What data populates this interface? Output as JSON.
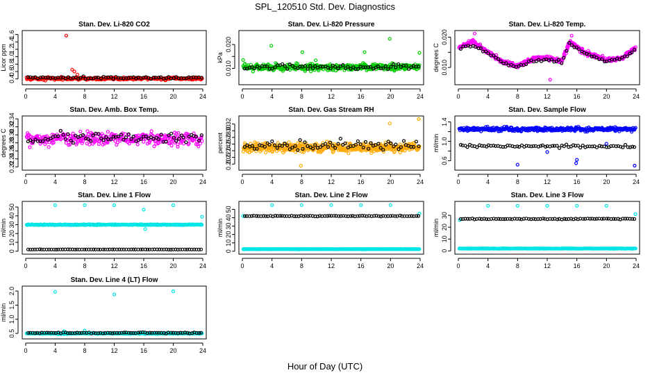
{
  "figure": {
    "title": "SPL_120510  Std. Dev. Diagnostics",
    "xlabel": "Hour of Day (UTC)"
  },
  "chart_data": [
    {
      "type": "scatter",
      "title": "Stan. Dev. Li-820 CO2",
      "ylabel": "Licor ppm",
      "xlim": [
        0,
        24
      ],
      "ylim": [
        0.3,
        1.65
      ],
      "xticks": [
        0,
        4,
        8,
        12,
        16,
        20,
        24
      ],
      "yticks": [
        0.4,
        0.6,
        0.8,
        1.0,
        1.2,
        1.4,
        1.6
      ],
      "ytick_labels": [
        "0.4",
        "0.6",
        "0.8",
        "1.0",
        "1.2",
        "1.4",
        "1.6"
      ],
      "series": [
        {
          "color": "#ff0000",
          "x_range": [
            0.1,
            23.9
          ],
          "count": 300,
          "center": 0.41,
          "spread": 0.06,
          "outliers": [
            {
              "x": 5.5,
              "y": 1.57
            },
            {
              "x": 6.3,
              "y": 0.65
            },
            {
              "x": 6.6,
              "y": 0.6
            },
            {
              "x": 7.0,
              "y": 0.52
            }
          ]
        },
        {
          "color": "#000000",
          "x_range": [
            0.3,
            23.8
          ],
          "count": 70,
          "center": 0.43,
          "spread": 0.05,
          "outliers": []
        }
      ]
    },
    {
      "type": "scatter",
      "title": "Stan. Dev. Li-820 Pressure",
      "ylabel": "kPa",
      "xlim": [
        0,
        24
      ],
      "ylim": [
        0.004,
        0.025
      ],
      "xticks": [
        0,
        4,
        8,
        12,
        16,
        20,
        24
      ],
      "yticks": [
        0.01,
        0.015,
        0.02
      ],
      "ytick_labels": [
        "0.010",
        "",
        "0.020"
      ],
      "series": [
        {
          "color": "#00cc00",
          "x_range": [
            0.1,
            23.9
          ],
          "count": 420,
          "center": 0.0105,
          "spread": 0.0022,
          "outliers": [
            {
              "x": 0.1,
              "y": 0.0135
            },
            {
              "x": 3.9,
              "y": 0.0195
            },
            {
              "x": 8.1,
              "y": 0.0168
            },
            {
              "x": 9.9,
              "y": 0.0134
            },
            {
              "x": 16.5,
              "y": 0.0168
            },
            {
              "x": 19.9,
              "y": 0.0224
            },
            {
              "x": 23.9,
              "y": 0.0165
            }
          ]
        },
        {
          "color": "#000000",
          "x_range": [
            0.3,
            23.8
          ],
          "count": 70,
          "center": 0.0105,
          "spread": 0.0018,
          "outliers": []
        }
      ]
    },
    {
      "type": "scatter",
      "title": "Stan. Dev. Li-820 Temp.",
      "ylabel": "degrees C",
      "xlim": [
        0,
        24
      ],
      "ylim": [
        0.005,
        0.0215
      ],
      "xticks": [
        0,
        4,
        8,
        12,
        16,
        20,
        24
      ],
      "yticks": [
        0.01,
        0.015,
        0.02
      ],
      "ytick_labels": [
        "0.010",
        "",
        "0.020"
      ],
      "series": [
        {
          "color": "#ff00ff",
          "x_range": [
            0.1,
            23.9
          ],
          "count": 420,
          "spread": 0.0012,
          "profile": [
            [
              0,
              0.0165
            ],
            [
              2,
              0.0185
            ],
            [
              4,
              0.015
            ],
            [
              6,
              0.0118
            ],
            [
              8,
              0.0105
            ],
            [
              10,
              0.0128
            ],
            [
              12,
              0.0132
            ],
            [
              14,
              0.012
            ],
            [
              15,
              0.0185
            ],
            [
              17,
              0.015
            ],
            [
              20,
              0.0125
            ],
            [
              22,
              0.013
            ],
            [
              24,
              0.0165
            ]
          ],
          "outliers": [
            {
              "x": 2.2,
              "y": 0.0212
            },
            {
              "x": 12.4,
              "y": 0.006
            },
            {
              "x": 15.3,
              "y": 0.0205
            }
          ]
        },
        {
          "color": "#000000",
          "x_range": [
            0.3,
            23.8
          ],
          "count": 70,
          "spread": 0.001,
          "profile": [
            [
              0,
              0.016
            ],
            [
              2,
              0.0175
            ],
            [
              4,
              0.0148
            ],
            [
              6,
              0.0115
            ],
            [
              8,
              0.01
            ],
            [
              10,
              0.0122
            ],
            [
              12,
              0.0128
            ],
            [
              14,
              0.0118
            ],
            [
              15,
              0.018
            ],
            [
              17,
              0.0148
            ],
            [
              20,
              0.0122
            ],
            [
              22,
              0.0128
            ],
            [
              24,
              0.016
            ]
          ],
          "outliers": []
        }
      ]
    },
    {
      "type": "scatter",
      "title": "Stan. Dev. Amb. Box Temp.",
      "ylabel": "degrees C",
      "xlim": [
        0,
        24
      ],
      "ylim": [
        0.217,
        0.342
      ],
      "xticks": [
        0,
        4,
        8,
        12,
        16,
        20,
        24
      ],
      "yticks": [
        0.22,
        0.24,
        0.26,
        0.28,
        0.3,
        0.32,
        0.34
      ],
      "ytick_labels": [
        "0.22",
        "0.24",
        "0.26",
        "0.28",
        "0.30",
        "0.32",
        "0.34"
      ],
      "series": [
        {
          "color": "#ff00ff",
          "x_range": [
            0.1,
            23.9
          ],
          "count": 330,
          "center": 0.29,
          "spread": 0.028,
          "outliers": []
        },
        {
          "color": "#000000",
          "x_range": [
            0.3,
            23.8
          ],
          "count": 70,
          "center": 0.292,
          "spread": 0.022,
          "outliers": []
        }
      ]
    },
    {
      "type": "scatter",
      "title": "Stan. Dev. Gas Stream RH",
      "ylabel": "percent",
      "xlim": [
        0,
        24
      ],
      "ylim": [
        0.188,
        0.338
      ],
      "xticks": [
        0,
        4,
        8,
        12,
        16,
        20,
        24
      ],
      "yticks": [
        0.2,
        0.22,
        0.24,
        0.26,
        0.28,
        0.3,
        0.32
      ],
      "ytick_labels": [
        "0.20",
        "0.22",
        "0.24",
        "0.26",
        "0.28",
        "0.30",
        "0.32"
      ],
      "series": [
        {
          "color": "#ffaa00",
          "x_range": [
            0.1,
            23.9
          ],
          "count": 460,
          "center": 0.25,
          "spread": 0.022,
          "outliers": [
            {
              "x": 19.9,
              "y": 0.322
            },
            {
              "x": 23.8,
              "y": 0.335
            },
            {
              "x": 7.9,
              "y": 0.195
            }
          ]
        },
        {
          "color": "#000000",
          "x_range": [
            0.3,
            23.8
          ],
          "count": 70,
          "center": 0.255,
          "spread": 0.025,
          "outliers": []
        }
      ]
    },
    {
      "type": "scatter",
      "title": "Stan. Dev. Sample Flow",
      "ylabel": "ml/min",
      "xlim": [
        0,
        24
      ],
      "ylim": [
        0.45,
        1.48
      ],
      "xticks": [
        0,
        4,
        8,
        12,
        16,
        20,
        24
      ],
      "yticks": [
        0.6,
        0.8,
        1.0,
        1.2,
        1.4
      ],
      "ytick_labels": [
        "0.6",
        "",
        "1.0",
        "",
        "1.4"
      ],
      "series": [
        {
          "color": "#0000ff",
          "x_range": [
            0.1,
            23.9
          ],
          "count": 400,
          "center": 1.25,
          "spread": 0.07,
          "outliers": [
            {
              "x": 8.0,
              "y": 0.52
            },
            {
              "x": 12.0,
              "y": 0.78
            },
            {
              "x": 15.9,
              "y": 0.55
            },
            {
              "x": 20.0,
              "y": 0.95
            },
            {
              "x": 23.8,
              "y": 0.5
            },
            {
              "x": 16.0,
              "y": 0.62
            }
          ]
        },
        {
          "color": "#000000",
          "x_range": [
            0.3,
            23.8
          ],
          "count": 75,
          "center": 0.9,
          "spread": 0.05,
          "outliers": []
        }
      ]
    },
    {
      "type": "scatter",
      "title": "Stan. Dev. Line 1 Flow",
      "ylabel": "ml/min",
      "xlim": [
        0,
        24
      ],
      "ylim": [
        -1,
        54
      ],
      "xticks": [
        0,
        4,
        8,
        12,
        16,
        20,
        24
      ],
      "yticks": [
        0,
        10,
        20,
        30,
        40,
        50
      ],
      "ytick_labels": [
        "0",
        "10",
        "20",
        "30",
        "40",
        "50"
      ],
      "series": [
        {
          "color": "#00e5e5",
          "x_range": [
            0.1,
            23.9
          ],
          "count": 420,
          "center": 30,
          "spread": 0.8,
          "outliers": [
            {
              "x": 4.0,
              "y": 52
            },
            {
              "x": 8.0,
              "y": 52
            },
            {
              "x": 12.0,
              "y": 52
            },
            {
              "x": 16.0,
              "y": 47
            },
            {
              "x": 20.0,
              "y": 52
            },
            {
              "x": 23.9,
              "y": 39
            },
            {
              "x": 16.2,
              "y": 25
            }
          ]
        },
        {
          "color": "#000000",
          "x_range": [
            0.3,
            23.8
          ],
          "count": 75,
          "center": 2,
          "spread": 0.2,
          "outliers": []
        }
      ]
    },
    {
      "type": "scatter",
      "title": "Stan. Dev. Line 2 Flow",
      "ylabel": "ml/min",
      "xlim": [
        0,
        24
      ],
      "ylim": [
        -1,
        57
      ],
      "xticks": [
        0,
        4,
        8,
        12,
        16,
        20,
        24
      ],
      "yticks": [
        0,
        10,
        20,
        30,
        40,
        50
      ],
      "ytick_labels": [
        "0",
        "10",
        "20",
        "30",
        "40",
        "50"
      ],
      "series": [
        {
          "color": "#00e5e5",
          "x_range": [
            0.1,
            23.9
          ],
          "count": 420,
          "center": 2.5,
          "spread": 0.3,
          "outliers": [
            {
              "x": 4.0,
              "y": 55
            },
            {
              "x": 8.0,
              "y": 55
            },
            {
              "x": 12.0,
              "y": 55
            },
            {
              "x": 16.0,
              "y": 55
            },
            {
              "x": 20.0,
              "y": 55
            },
            {
              "x": 23.9,
              "y": 45
            },
            {
              "x": 0.1,
              "y": 42
            }
          ]
        },
        {
          "color": "#000000",
          "x_range": [
            0.3,
            23.8
          ],
          "count": 75,
          "center": 42,
          "spread": 0.8,
          "outliers": []
        }
      ]
    },
    {
      "type": "scatter",
      "title": "Stan. Dev. Line 3 Flow",
      "ylabel": "ml/min",
      "xlim": [
        0,
        24
      ],
      "ylim": [
        -1,
        40
      ],
      "xticks": [
        0,
        4,
        8,
        12,
        16,
        20,
        24
      ],
      "yticks": [
        0,
        10,
        20,
        30
      ],
      "ytick_labels": [
        "0",
        "10",
        "20",
        "30"
      ],
      "series": [
        {
          "color": "#00e5e5",
          "x_range": [
            0.1,
            23.9
          ],
          "count": 420,
          "center": 2.0,
          "spread": 0.3,
          "outliers": [
            {
              "x": 4.0,
              "y": 38
            },
            {
              "x": 8.0,
              "y": 38
            },
            {
              "x": 12.0,
              "y": 38
            },
            {
              "x": 16.0,
              "y": 38
            },
            {
              "x": 20.0,
              "y": 38
            },
            {
              "x": 23.9,
              "y": 31
            },
            {
              "x": 0.2,
              "y": 26
            }
          ]
        },
        {
          "color": "#000000",
          "x_range": [
            0.3,
            23.8
          ],
          "count": 75,
          "center": 27,
          "spread": 0.6,
          "outliers": []
        }
      ]
    },
    {
      "type": "scatter",
      "title": "Stan. Dev. Line 4 (LT) Flow",
      "ylabel": "ml/min",
      "xlim": [
        0,
        24
      ],
      "ylim": [
        0.38,
        2.1
      ],
      "xticks": [
        0,
        4,
        8,
        12,
        16,
        20,
        24
      ],
      "yticks": [
        0.5,
        1.0,
        1.5,
        2.0
      ],
      "ytick_labels": [
        "0.5",
        "1.0",
        "1.5",
        "2.0"
      ],
      "series": [
        {
          "color": "#00e5e5",
          "x_range": [
            0.1,
            23.9
          ],
          "count": 420,
          "center": 0.5,
          "spread": 0.03,
          "outliers": [
            {
              "x": 4.0,
              "y": 1.97
            },
            {
              "x": 12.0,
              "y": 1.88
            },
            {
              "x": 20.0,
              "y": 1.99
            },
            {
              "x": 8.0,
              "y": 0.6
            },
            {
              "x": 5.2,
              "y": 0.58
            }
          ]
        },
        {
          "color": "#000000",
          "x_range": [
            0.3,
            23.8
          ],
          "count": 75,
          "center": 0.52,
          "spread": 0.03,
          "outliers": []
        }
      ]
    }
  ]
}
